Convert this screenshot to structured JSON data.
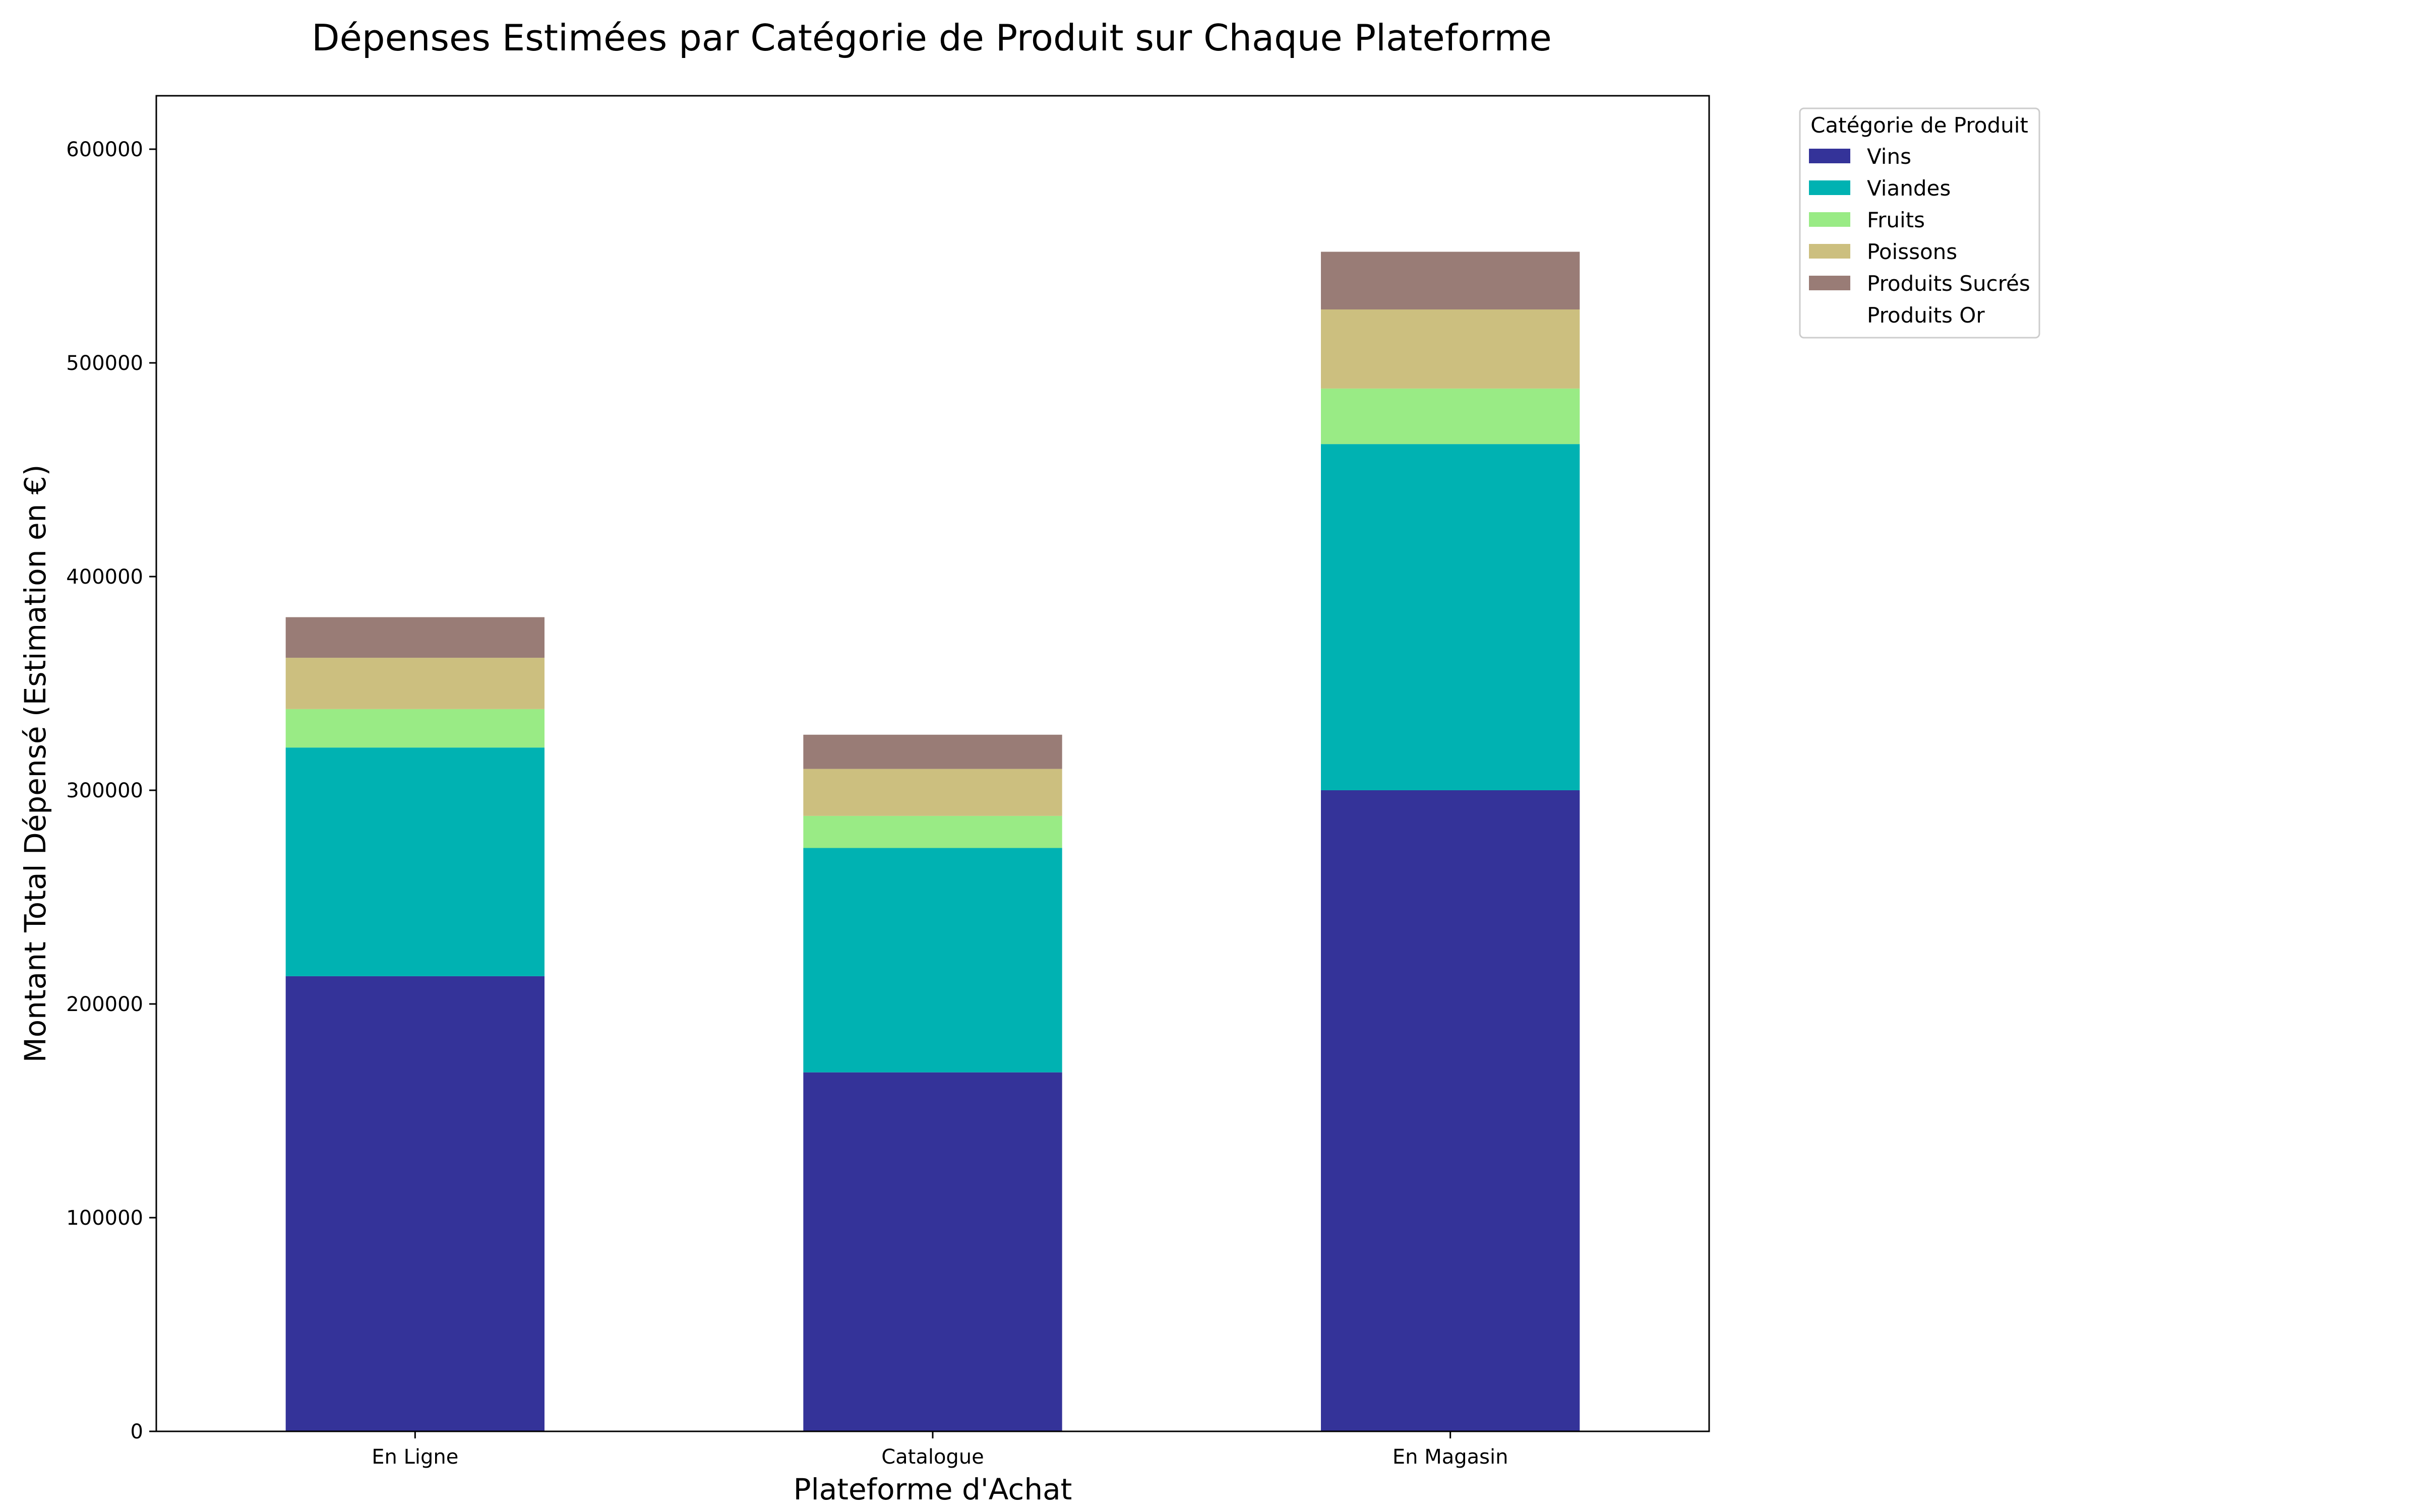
{
  "chart_data": {
    "type": "bar",
    "stacked": true,
    "title": "Dépenses Estimées par Catégorie de Produit sur Chaque Plateforme",
    "xlabel": "Plateforme d'Achat",
    "ylabel": "Montant Total Dépensé (Estimation en €)",
    "categories": [
      "En Ligne",
      "Catalogue",
      "En Magasin"
    ],
    "ylim": [
      0,
      625000
    ],
    "yticks": [
      0,
      100000,
      200000,
      300000,
      400000,
      500000,
      600000
    ],
    "grid": false,
    "legend": {
      "title": "Catégorie de Produit",
      "placement": "outside-top-right"
    },
    "series": [
      {
        "name": "Vins",
        "color": "#343399",
        "values": [
          213000,
          168000,
          300000
        ]
      },
      {
        "name": "Viandes",
        "color": "#00b2b2",
        "values": [
          107000,
          105000,
          162000
        ]
      },
      {
        "name": "Fruits",
        "color": "#99eb85",
        "values": [
          18000,
          15000,
          26000
        ]
      },
      {
        "name": "Poissons",
        "color": "#ccbf7f",
        "values": [
          24000,
          22000,
          37000
        ]
      },
      {
        "name": "Produits Sucrés",
        "color": "#997c76",
        "values": [
          19000,
          16000,
          27000
        ]
      },
      {
        "name": "Produits Or",
        "color": "#ffffff",
        "values": [
          0,
          0,
          0
        ]
      }
    ]
  }
}
